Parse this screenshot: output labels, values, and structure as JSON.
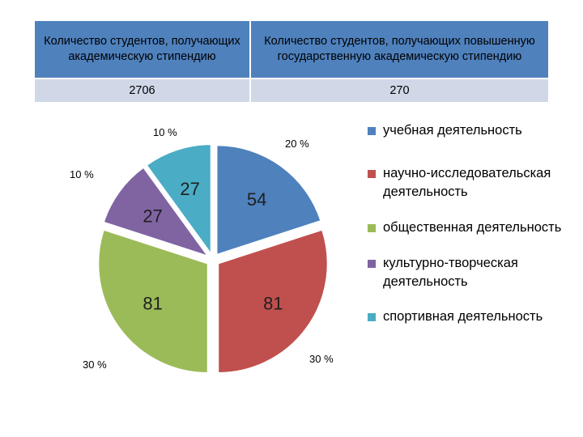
{
  "table": {
    "header_left": "Количество студентов, получающих академическую стипендию",
    "header_right": "Количество студентов, получающих повышенную государственную академическую стипендию",
    "value_left": "2706",
    "value_right": "270"
  },
  "chart_data": {
    "type": "pie",
    "exploded": true,
    "slices": [
      {
        "category": "учебная деятельность",
        "value": 54,
        "percent_label": "20 %",
        "color": "#4f81bd"
      },
      {
        "category": "научно-исследовательская деятельность",
        "value": 81,
        "percent_label": "30 %",
        "color": "#c0504d"
      },
      {
        "category": "общественная деятельность",
        "value": 81,
        "percent_label": "30 %",
        "color": "#9bbb59"
      },
      {
        "category": "культурно-творческая деятельность",
        "value": 27,
        "percent_label": "10 %",
        "color": "#8064a2"
      },
      {
        "category": "спортивная деятельность",
        "value": 27,
        "percent_label": "10 %",
        "color": "#4bacc6"
      }
    ],
    "legend_position": "right"
  }
}
